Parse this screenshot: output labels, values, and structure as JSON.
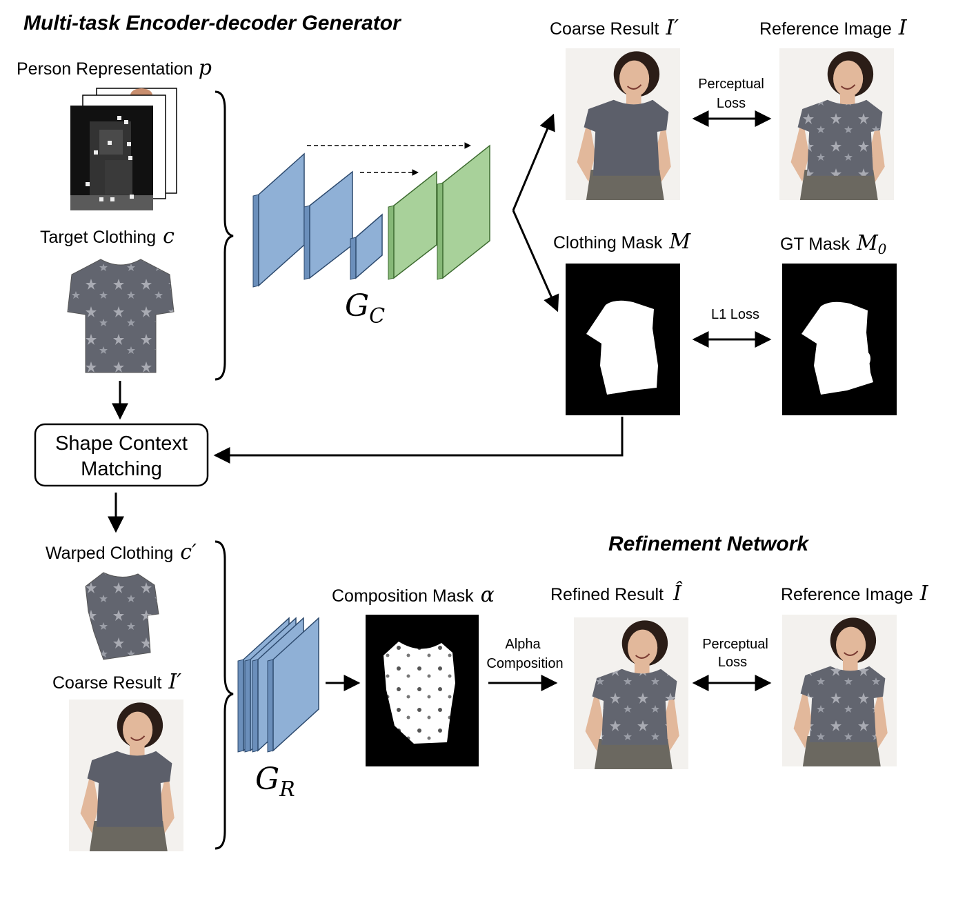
{
  "titles": {
    "encoder": "Multi-task Encoder-decoder Generator",
    "refine": "Refinement Network"
  },
  "inputs": {
    "person": {
      "label": "Person Representation",
      "sym": "p"
    },
    "target": {
      "label": "Target Clothing",
      "sym": "c"
    },
    "warped": {
      "label": "Warped Clothing",
      "sym": "c′"
    },
    "coarse": {
      "label": "Coarse Result",
      "sym": "I′"
    }
  },
  "process": {
    "shape_context": {
      "line1": "Shape Context",
      "line2": "Matching"
    },
    "gc": {
      "main": "G",
      "sub": "C"
    },
    "gr": {
      "main": "G",
      "sub": "R"
    }
  },
  "outputs": {
    "coarse": {
      "label": "Coarse Result",
      "sym": "I′"
    },
    "reference_top": {
      "label": "Reference Image",
      "sym": "I"
    },
    "mask": {
      "label": "Clothing Mask",
      "sym": "M"
    },
    "gt_mask": {
      "label": "GT Mask",
      "sym": "M",
      "sub": "0"
    },
    "composition": {
      "label": "Composition Mask",
      "sym": "α"
    },
    "refined": {
      "label": "Refined Result",
      "sym": "Î"
    },
    "reference_bottom": {
      "label": "Reference Image",
      "sym": "I"
    }
  },
  "losses": {
    "perceptual_top": {
      "line1": "Perceptual",
      "line2": "Loss"
    },
    "l1": "L1 Loss",
    "alpha": {
      "line1": "Alpha",
      "line2": "Composition"
    },
    "perceptual_bottom": {
      "line1": "Perceptual",
      "line2": "Loss"
    }
  },
  "colors": {
    "encoder_block": "#8fb0d6",
    "encoder_block_side": "#6b8fbb",
    "decoder_block": "#a8d19a",
    "decoder_block_side": "#86b877",
    "shirt": "#5c5f6a",
    "pants": "#6b6860",
    "skin": "#e2b89b"
  }
}
